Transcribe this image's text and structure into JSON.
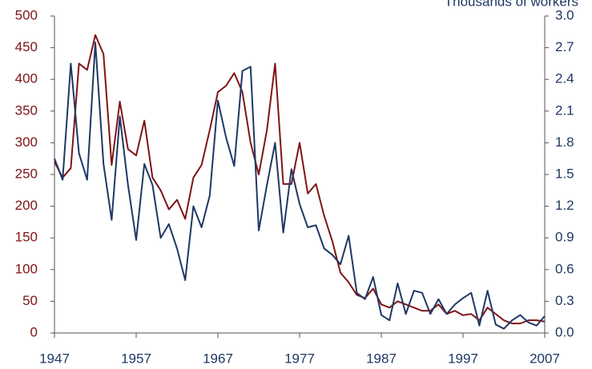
{
  "chart_data": {
    "type": "line",
    "y2label": "Thousands of workers",
    "x": [
      1947,
      1948,
      1949,
      1950,
      1951,
      1952,
      1953,
      1954,
      1955,
      1956,
      1957,
      1958,
      1959,
      1960,
      1961,
      1962,
      1963,
      1964,
      1965,
      1966,
      1967,
      1968,
      1969,
      1970,
      1971,
      1972,
      1973,
      1974,
      1975,
      1976,
      1977,
      1978,
      1979,
      1980,
      1981,
      1982,
      1983,
      1984,
      1985,
      1986,
      1987,
      1988,
      1989,
      1990,
      1991,
      1992,
      1993,
      1994,
      1995,
      1996,
      1997,
      1998,
      1999,
      2000,
      2001,
      2002,
      2003,
      2004,
      2005,
      2006,
      2007
    ],
    "xlim": [
      1947,
      2007
    ],
    "xticks": [
      1947,
      1957,
      1967,
      1977,
      1987,
      1997,
      2007
    ],
    "ylim": [
      0,
      500
    ],
    "yticks": [
      0,
      50,
      100,
      150,
      200,
      250,
      300,
      350,
      400,
      450,
      500
    ],
    "y2lim": [
      0,
      3
    ],
    "y2ticks": [
      {
        "value": 0,
        "label": "0.0"
      },
      0.3,
      0.6,
      0.9,
      1.2,
      1.5,
      1.8,
      2.1,
      2.4,
      2.7,
      {
        "value": 3,
        "label": "3.0"
      }
    ],
    "series": [
      {
        "color": "#7f1416",
        "values": [
          270,
          245,
          260,
          425,
          415,
          470,
          440,
          265,
          365,
          290,
          280,
          335,
          245,
          225,
          195,
          210,
          180,
          245,
          265,
          320,
          380,
          390,
          410,
          380,
          300,
          250,
          320,
          425,
          235,
          235,
          300,
          220,
          235,
          185,
          145,
          95,
          80,
          60,
          55,
          70,
          45,
          40,
          50,
          45,
          40,
          35,
          35,
          45,
          30,
          35,
          28,
          30,
          20,
          40,
          30,
          20,
          15,
          15,
          20,
          20,
          18
        ]
      },
      {
        "color": "#1f3864",
        "axis": "y2",
        "values": [
          1.65,
          1.45,
          2.55,
          1.7,
          1.45,
          2.75,
          1.6,
          1.07,
          2.05,
          1.4,
          0.88,
          1.6,
          1.4,
          0.9,
          1.03,
          0.8,
          0.5,
          1.2,
          1.0,
          1.3,
          2.2,
          1.85,
          1.58,
          2.48,
          2.52,
          0.97,
          1.4,
          1.8,
          0.95,
          1.55,
          1.22,
          1.0,
          1.02,
          0.8,
          0.74,
          0.65,
          0.92,
          0.38,
          0.32,
          0.53,
          0.17,
          0.12,
          0.47,
          0.18,
          0.4,
          0.38,
          0.18,
          0.32,
          0.18,
          0.27,
          0.33,
          0.38,
          0.07,
          0.4,
          0.08,
          0.04,
          0.12,
          0.17,
          0.1,
          0.07,
          0.16
        ]
      }
    ]
  }
}
